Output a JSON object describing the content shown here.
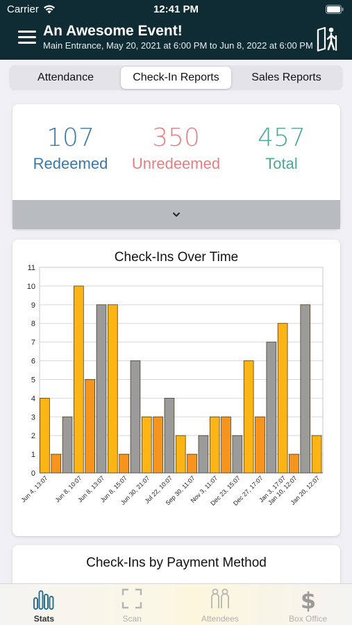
{
  "status_bar": {
    "carrier": "Carrier",
    "time": "12:41 PM"
  },
  "header": {
    "title": "An Awesome Event!",
    "subtitle": "Main Entrance, May 20, 2021 at 6:00 PM to Jun  8, 2022 at 6:00 PM"
  },
  "segments": [
    {
      "label": "Attendance",
      "active": false
    },
    {
      "label": "Check-In Reports",
      "active": true
    },
    {
      "label": "Sales Reports",
      "active": false
    }
  ],
  "summary": {
    "redeemed": {
      "value": "107",
      "label": "Redeemed",
      "color": "#3a78a8"
    },
    "unredeemed": {
      "value": "350",
      "label": "Unredeemed",
      "color": "#e58080"
    },
    "total": {
      "value": "457",
      "label": "Total",
      "color": "#4aa898"
    }
  },
  "chart_data": {
    "type": "bar",
    "title": "Check-Ins Over Time",
    "xlabel": "",
    "ylabel": "",
    "ylim": [
      0,
      11
    ],
    "yticks": [
      0,
      1,
      2,
      3,
      4,
      5,
      6,
      7,
      8,
      9,
      10,
      11
    ],
    "grid": true,
    "legend": "none",
    "values": [
      4,
      1,
      3,
      10,
      5,
      9,
      9,
      1,
      6,
      3,
      3,
      4,
      2,
      1,
      2,
      3,
      3,
      2,
      6,
      3,
      7,
      8,
      1,
      9,
      2
    ],
    "colors": [
      "#fdb515",
      "#f7941d",
      "#9b9b9b",
      "#fdb515",
      "#f7941d",
      "#9b9b9b",
      "#fdb515",
      "#f7941d",
      "#9b9b9b",
      "#fdb515",
      "#f7941d",
      "#9b9b9b",
      "#fdb515",
      "#f7941d",
      "#9b9b9b",
      "#fdb515",
      "#f7941d",
      "#9b9b9b",
      "#fdb515",
      "#f7941d",
      "#9b9b9b",
      "#fdb515",
      "#f7941d",
      "#9b9b9b",
      "#fdb515"
    ],
    "tick_labels": [
      {
        "index": 0,
        "label": "Jun 4, 13:07"
      },
      {
        "index": 3,
        "label": "Jun 8, 10:07"
      },
      {
        "index": 5,
        "label": "Jun 8, 13:07"
      },
      {
        "index": 7,
        "label": "Jun 8, 15:07"
      },
      {
        "index": 9,
        "label": "Jun 30, 21:07"
      },
      {
        "index": 11,
        "label": "Jul 22, 10:07"
      },
      {
        "index": 13,
        "label": "Sep 30, 11:07"
      },
      {
        "index": 15,
        "label": "Nov 3, 11:07"
      },
      {
        "index": 17,
        "label": "Dec 23, 15:07"
      },
      {
        "index": 19,
        "label": "Dec 27, 17:07"
      },
      {
        "index": 21,
        "label": "Jan 3, 17:07"
      },
      {
        "index": 22,
        "label": "Jan 10, 12:07"
      },
      {
        "index": 24,
        "label": "Jan 20, 12:07"
      }
    ]
  },
  "payment_card": {
    "title": "Check-Ins by Payment Method"
  },
  "tabbar": [
    {
      "label": "Stats",
      "icon": "stats-icon",
      "active": true
    },
    {
      "label": "Scan",
      "icon": "scan-icon",
      "active": false
    },
    {
      "label": "Attendees",
      "icon": "attendees-icon",
      "active": false
    },
    {
      "label": "Box Office",
      "icon": "dollar-icon",
      "active": false
    }
  ]
}
